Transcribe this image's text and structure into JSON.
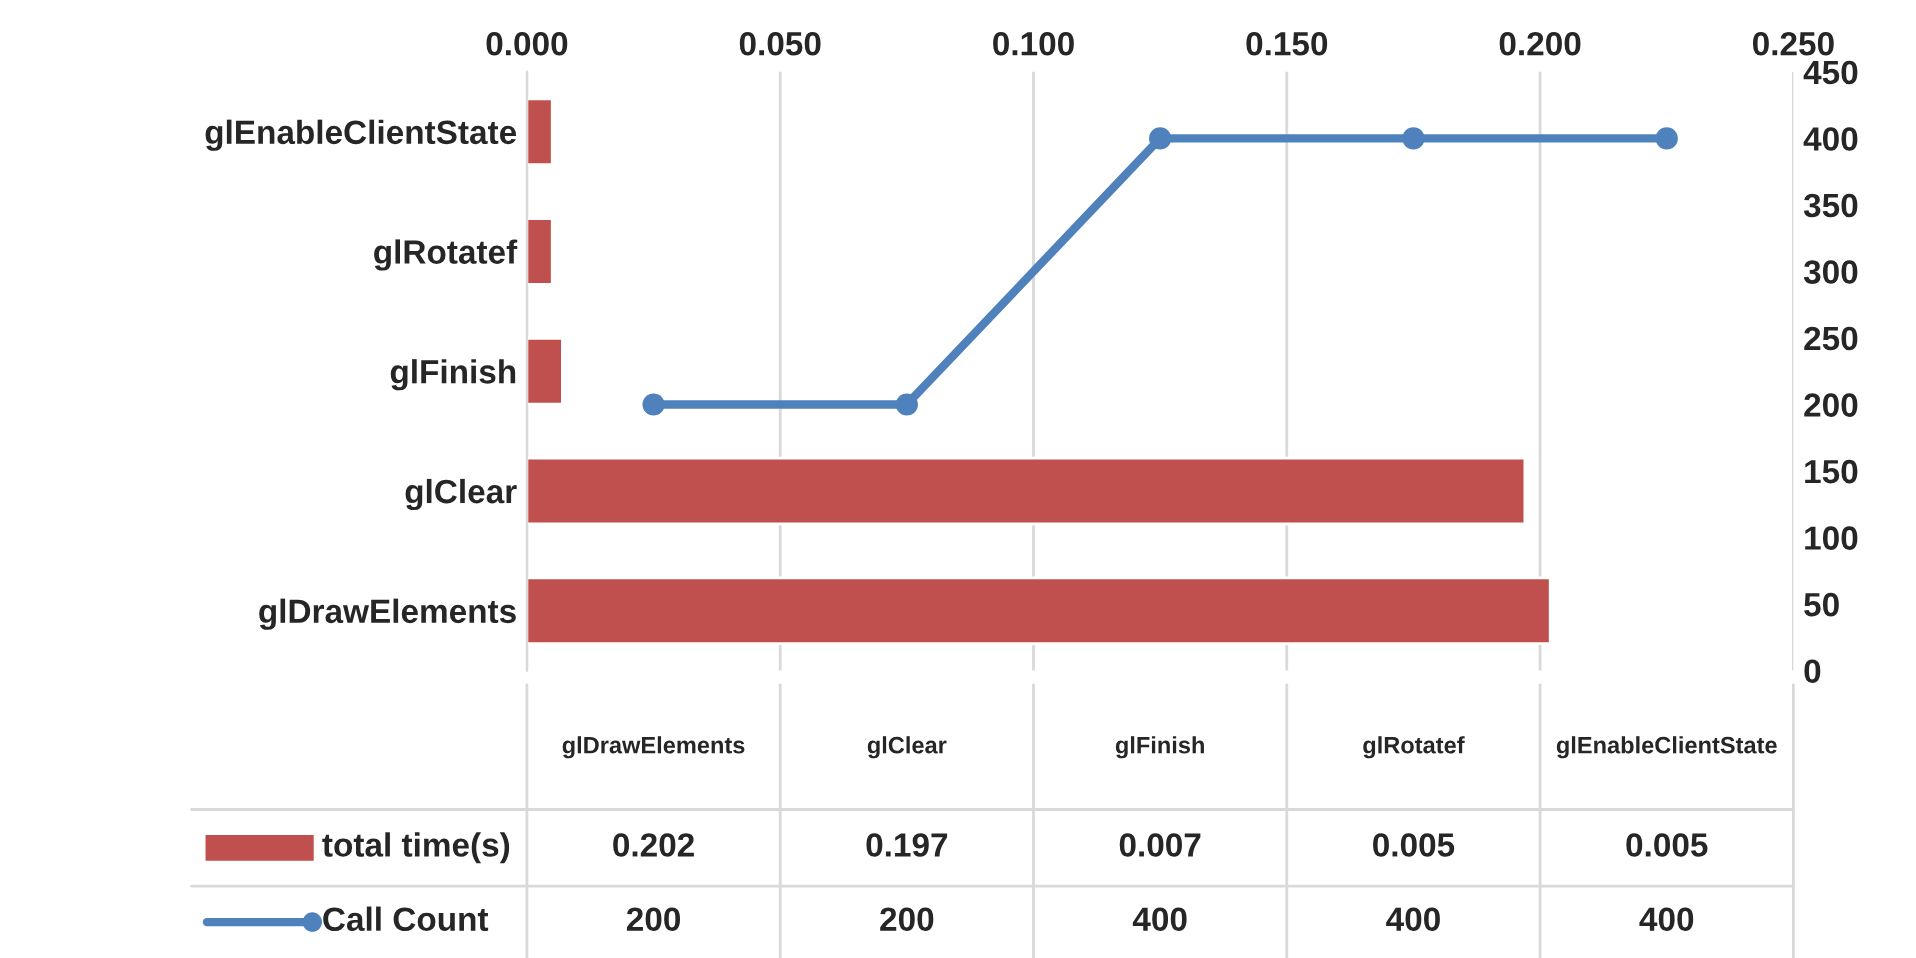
{
  "chart_data": [
    {
      "type": "bar",
      "orientation": "horizontal",
      "categories": [
        "glEnableClientState",
        "glRotatef",
        "glFinish",
        "glClear",
        "glDrawElements"
      ],
      "xlim": [
        0,
        0.25
      ],
      "xticks": [
        {
          "value": 0,
          "label": "0.000"
        },
        {
          "value": 0.05,
          "label": "0.050"
        },
        {
          "value": 0.1,
          "label": "0.100"
        },
        {
          "value": 0.15,
          "label": "0.150"
        },
        {
          "value": 0.2,
          "label": "0.200"
        },
        {
          "value": 0.25,
          "label": "0.250"
        }
      ],
      "series": [
        {
          "name": "total time(s)",
          "color": "#c0504d",
          "values": [
            0.005,
            0.005,
            0.007,
            0.197,
            0.202
          ]
        }
      ],
      "annotations": [
        "0.202",
        "0.197",
        "0.007",
        "0.005",
        "0.005"
      ],
      "grid": "x",
      "legend": "bottom"
    },
    {
      "type": "line",
      "categories": [
        "glDrawElements",
        "glClear",
        "glFinish",
        "glRotatef",
        "glEnableClientState"
      ],
      "ylim": [
        0,
        450
      ],
      "yticks": [
        0,
        50,
        100,
        150,
        200,
        250,
        300,
        350,
        400,
        450
      ],
      "series": [
        {
          "name": "Call Count",
          "color": "#4f81bd",
          "values": [
            200,
            200,
            400,
            400,
            400
          ]
        }
      ],
      "marker": "circle",
      "line_style": "solid",
      "legend": "bottom",
      "data_labels": true
    }
  ]
}
